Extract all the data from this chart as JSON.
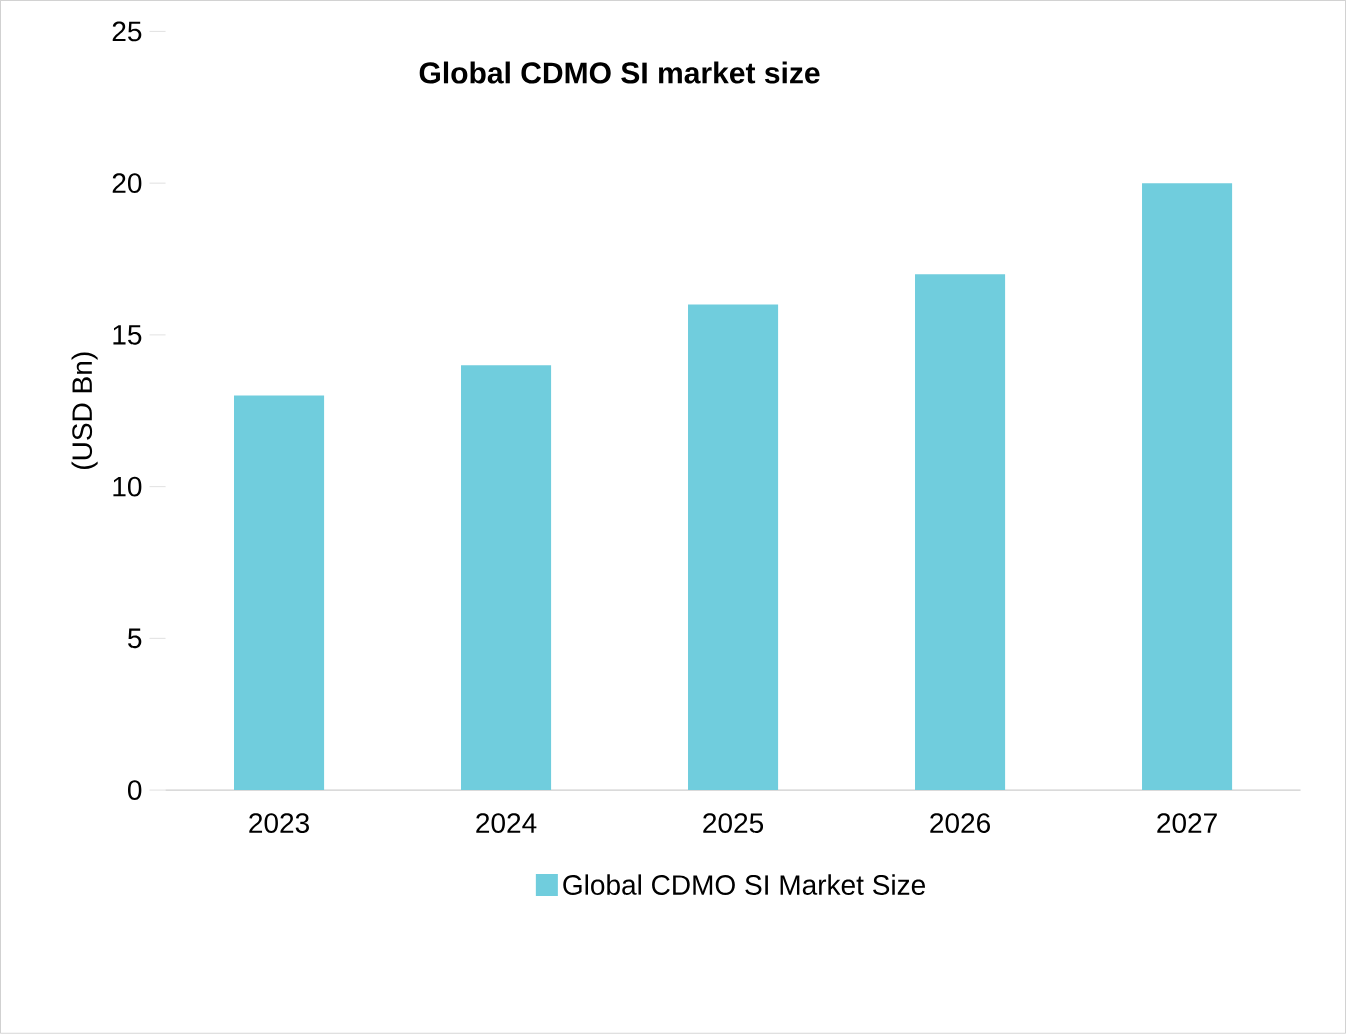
{
  "chart_data": {
    "type": "bar",
    "title": "**Global CDMO SI market size**",
    "ylabel": "(USD Bn)",
    "categories": [
      "2023",
      "2024",
      "2025",
      "2026",
      "2027"
    ],
    "series": [
      {
        "name": "Global CDMO SI Market Size",
        "color": "#70cddd",
        "values": [
          13,
          14,
          16,
          17,
          20
        ]
      }
    ],
    "ylim": [
      0,
      25
    ],
    "yticks": [
      0,
      5,
      10,
      15,
      20,
      25
    ],
    "grid": false,
    "legend": "bottom"
  }
}
